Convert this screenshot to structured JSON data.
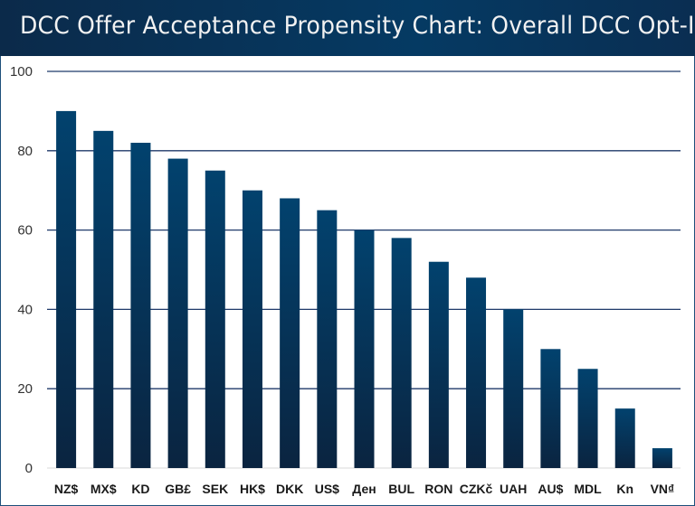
{
  "title": "DCC Offer Acceptance Propensity Chart: Overall DCC Opt-Ins",
  "chart_data": {
    "type": "bar",
    "title": "DCC Offer Acceptance Propensity Chart: Overall DCC Opt-Ins",
    "xlabel": "",
    "ylabel": "",
    "categories": [
      "NZ$",
      "MX$",
      "KD",
      "GB£",
      "SEK",
      "HK$",
      "DKK",
      "US$",
      "Ден",
      "BUL",
      "RON",
      "CZKč",
      "UAH",
      "AU$",
      "MDL",
      "Kn",
      "VN₫"
    ],
    "values": [
      90,
      85,
      82,
      78,
      75,
      70,
      68,
      65,
      60,
      58,
      52,
      48,
      40,
      30,
      25,
      15,
      5
    ],
    "ylim": [
      0,
      100
    ],
    "yticks": [
      0,
      20,
      40,
      60,
      80,
      100
    ],
    "grid": true,
    "legend": "none",
    "colors": {
      "bar_top": "#02426e",
      "bar_bottom": "#0a2440",
      "grid": "#1f3a6a",
      "title_bg": "#053a63"
    }
  }
}
